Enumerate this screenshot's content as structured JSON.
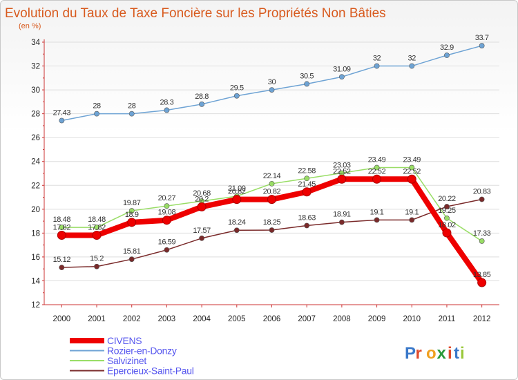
{
  "chart_data": {
    "type": "line",
    "title": "Evolution du Taux de Taxe Foncière sur les Propriétés Non Bâties",
    "subtitle": "(en %)",
    "xlabel": "",
    "ylabel": "",
    "categories": [
      "2000",
      "2001",
      "2002",
      "2003",
      "2004",
      "2005",
      "2006",
      "2007",
      "2008",
      "2009",
      "2010",
      "2011",
      "2012"
    ],
    "ylim": [
      12,
      34
    ],
    "yticks": [
      "12",
      "14",
      "16",
      "18",
      "20",
      "22",
      "24",
      "26",
      "28",
      "30",
      "32",
      "34"
    ],
    "grid": "horizontal",
    "series": [
      {
        "name": "CIVENS",
        "color": "#ee0000",
        "values": [
          17.82,
          17.82,
          18.9,
          19.08,
          20.2,
          20.82,
          20.82,
          21.45,
          22.52,
          22.52,
          22.52,
          18.02,
          13.85
        ],
        "labels": [
          "17.82",
          "17.82",
          "18.9",
          "19.08",
          "20.2",
          "20.82",
          "20.82",
          "21.45",
          "22.52",
          "22.52",
          "22.52",
          "18.02",
          "13.85"
        ]
      },
      {
        "name": "Rozier-en-Donzy",
        "color": "#6ea3d4",
        "values": [
          27.43,
          28,
          28,
          28.3,
          28.8,
          29.5,
          30,
          30.5,
          31.09,
          32,
          32,
          32.9,
          33.7
        ],
        "labels": [
          "27.43",
          "28",
          "28",
          "28.3",
          "28.8",
          "29.5",
          "30",
          "30.5",
          "31.09",
          "32",
          "32",
          "32.9",
          "33.7"
        ]
      },
      {
        "name": "Salvizinet",
        "color": "#99dd66",
        "values": [
          18.48,
          18.48,
          19.87,
          20.27,
          20.68,
          21.09,
          22.14,
          22.58,
          23.03,
          23.49,
          23.49,
          19.25,
          17.33
        ],
        "labels": [
          "18.48",
          "18.48",
          "19.87",
          "20.27",
          "20.68",
          "21.09",
          "22.14",
          "22.58",
          "23.03",
          "23.49",
          "23.49",
          "19.25",
          "17.33"
        ]
      },
      {
        "name": "Epercieux-Saint-Paul",
        "color": "#7a2a2a",
        "values": [
          15.12,
          15.2,
          15.81,
          16.59,
          17.57,
          18.24,
          18.25,
          18.63,
          18.91,
          19.1,
          19.1,
          20.22,
          20.83
        ],
        "labels": [
          "15.12",
          "15.2",
          "15.81",
          "16.59",
          "17.57",
          "18.24",
          "18.25",
          "18.63",
          "18.91",
          "19.1",
          "19.1",
          "20.22",
          "20.83"
        ]
      }
    ],
    "legend": "bottom-left"
  },
  "logo": {
    "letters": [
      "P",
      "r",
      "o",
      "x",
      "i",
      "t",
      "i"
    ],
    "colors": [
      "#3a78c9",
      "#e04a2a",
      "#f0a020",
      "#2a9a3a",
      "#e04a2a",
      "#3a78c9",
      "#9ac83a"
    ]
  }
}
